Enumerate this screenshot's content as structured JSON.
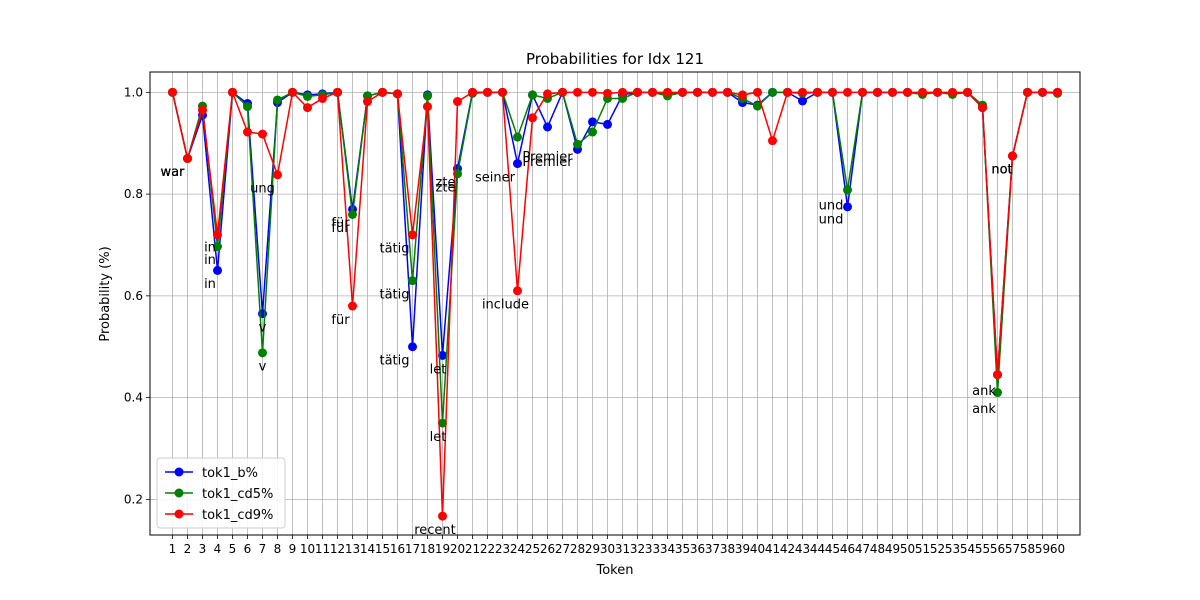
{
  "chart_data": {
    "type": "line",
    "title": "Probabilities for Idx 121",
    "xlabel": "Token",
    "ylabel": "Probability (%)",
    "xlim": [
      -0.5,
      61.5
    ],
    "ylim": [
      0.13,
      1.04
    ],
    "grid": true,
    "legend_position": "lower-left",
    "x": [
      1,
      2,
      3,
      4,
      5,
      6,
      7,
      8,
      9,
      10,
      11,
      12,
      13,
      14,
      15,
      16,
      17,
      18,
      19,
      20,
      21,
      22,
      23,
      24,
      25,
      26,
      27,
      28,
      29,
      30,
      31,
      32,
      33,
      34,
      35,
      36,
      37,
      38,
      39,
      40,
      41,
      42,
      43,
      44,
      45,
      46,
      47,
      48,
      49,
      50,
      51,
      52,
      53,
      54,
      55,
      56,
      57,
      58,
      59,
      60
    ],
    "yticks": [
      0.2,
      0.4,
      0.6,
      0.8,
      1.0
    ],
    "ytick_labels": [
      "0.2",
      "0.4",
      "0.6",
      "0.8",
      "1.0"
    ],
    "series": [
      {
        "name": "tok1_b%",
        "color": "#0000ff",
        "values": [
          1.0,
          0.87,
          0.955,
          0.65,
          1.0,
          0.978,
          0.565,
          0.98,
          1.0,
          0.995,
          0.997,
          1.0,
          0.77,
          0.993,
          1.0,
          0.997,
          0.5,
          0.995,
          0.483,
          0.85,
          1.0,
          1.0,
          1.0,
          0.86,
          0.995,
          0.932,
          1.0,
          0.888,
          0.942,
          0.937,
          0.995,
          1.0,
          1.0,
          0.998,
          1.0,
          1.0,
          1.0,
          1.0,
          0.98,
          0.975,
          1.0,
          1.0,
          0.983,
          1.0,
          1.0,
          0.775,
          1.0,
          1.0,
          1.0,
          1.0,
          0.998,
          1.0,
          0.998,
          1.0,
          0.97,
          0.445,
          0.875,
          1.0,
          1.0,
          1.0
        ]
      },
      {
        "name": "tok1_cd5%",
        "color": "#008000",
        "values": [
          1.0,
          0.87,
          0.973,
          0.697,
          1.0,
          0.972,
          0.488,
          0.985,
          1.0,
          0.992,
          0.995,
          1.0,
          0.76,
          0.993,
          1.0,
          0.997,
          0.63,
          0.993,
          0.35,
          0.84,
          0.998,
          1.0,
          1.0,
          0.912,
          0.995,
          0.988,
          1.0,
          0.898,
          0.922,
          0.988,
          0.988,
          1.0,
          1.0,
          0.993,
          1.0,
          1.0,
          1.0,
          1.0,
          0.988,
          0.973,
          1.0,
          1.0,
          0.998,
          1.0,
          1.0,
          0.808,
          1.0,
          1.0,
          1.0,
          1.0,
          0.996,
          1.0,
          0.996,
          1.0,
          0.975,
          0.41,
          0.875,
          1.0,
          1.0,
          0.998
        ]
      },
      {
        "name": "tok1_cd9%",
        "color": "#ff0000",
        "values": [
          1.0,
          0.87,
          0.965,
          0.72,
          1.0,
          0.922,
          0.918,
          0.838,
          1.0,
          0.97,
          0.988,
          1.0,
          0.58,
          0.982,
          1.0,
          0.997,
          0.72,
          0.972,
          0.167,
          0.982,
          1.0,
          1.0,
          1.0,
          0.61,
          0.95,
          0.997,
          1.0,
          1.0,
          1.0,
          0.998,
          1.0,
          1.0,
          1.0,
          1.0,
          1.0,
          1.0,
          1.0,
          1.0,
          0.995,
          1.0,
          0.905,
          1.0,
          1.0,
          1.0,
          1.0,
          1.0,
          1.0,
          1.0,
          1.0,
          1.0,
          1.0,
          1.0,
          1.0,
          1.0,
          0.97,
          0.445,
          0.875,
          1.0,
          1.0,
          1.0
        ]
      }
    ],
    "annotations": [
      {
        "text": "war",
        "x": 1,
        "y": 0.845
      },
      {
        "text": "war",
        "x": 1,
        "y": 0.845
      },
      {
        "text": "war",
        "x": 1,
        "y": 0.845
      },
      {
        "text": "in",
        "x": 3.5,
        "y": 0.697
      },
      {
        "text": "in",
        "x": 3.5,
        "y": 0.672
      },
      {
        "text": "in",
        "x": 3.5,
        "y": 0.625
      },
      {
        "text": "ung",
        "x": 7,
        "y": 0.813
      },
      {
        "text": "v",
        "x": 7,
        "y": 0.54
      },
      {
        "text": "v",
        "x": 7,
        "y": 0.463
      },
      {
        "text": "für",
        "x": 12.2,
        "y": 0.745
      },
      {
        "text": "für",
        "x": 12.2,
        "y": 0.735
      },
      {
        "text": "für",
        "x": 12.2,
        "y": 0.555
      },
      {
        "text": "tätig",
        "x": 15.8,
        "y": 0.695
      },
      {
        "text": "tätig",
        "x": 15.8,
        "y": 0.605
      },
      {
        "text": "tätig",
        "x": 15.8,
        "y": 0.475
      },
      {
        "text": "zte",
        "x": 19.2,
        "y": 0.825
      },
      {
        "text": "zte",
        "x": 19.2,
        "y": 0.815
      },
      {
        "text": "let",
        "x": 18.7,
        "y": 0.457
      },
      {
        "text": "let",
        "x": 18.7,
        "y": 0.325
      },
      {
        "text": "recent",
        "x": 18.5,
        "y": 0.142
      },
      {
        "text": "seiner",
        "x": 22.5,
        "y": 0.835
      },
      {
        "text": "Premier",
        "x": 26,
        "y": 0.875
      },
      {
        "text": "Premier",
        "x": 26,
        "y": 0.865
      },
      {
        "text": "include",
        "x": 23.2,
        "y": 0.585
      },
      {
        "text": "und",
        "x": 44.9,
        "y": 0.78
      },
      {
        "text": "und",
        "x": 44.9,
        "y": 0.752
      },
      {
        "text": "not",
        "x": 56.3,
        "y": 0.85
      },
      {
        "text": "not",
        "x": 56.3,
        "y": 0.85
      },
      {
        "text": "not",
        "x": 56.3,
        "y": 0.85
      },
      {
        "text": "ank",
        "x": 55.1,
        "y": 0.415
      },
      {
        "text": "ank",
        "x": 55.1,
        "y": 0.38
      }
    ]
  }
}
